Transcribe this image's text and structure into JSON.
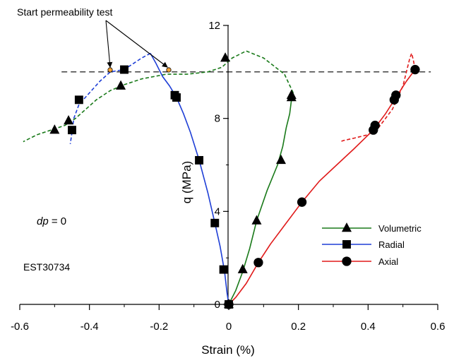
{
  "chart_data": {
    "type": "scatter",
    "xlabel": "Strain (%)",
    "ylabel": "q (MPa)",
    "xlim": [
      -0.6,
      0.6
    ],
    "ylim": [
      0,
      12
    ],
    "x_ticks": [
      -0.6,
      -0.4,
      -0.2,
      0,
      0.2,
      0.4,
      0.6
    ],
    "y_ticks": [
      0,
      4,
      8,
      12
    ],
    "x_tick_labels": [
      "-0.6",
      "-0.4",
      "-0.2",
      "0",
      "0.2",
      "0.4",
      "0.6"
    ],
    "y_tick_labels": [
      "0",
      "4",
      "8",
      "12"
    ],
    "reference_line_y": 10,
    "legend_position": "bottom-right",
    "annotations": {
      "callout": "Start permeability test",
      "condition_var": "dp",
      "condition_rest": " = 0",
      "sample_id": "EST30734"
    },
    "series": [
      {
        "name": "Volumetric",
        "color": "#1a7a1a",
        "marker": "triangle",
        "markers": [
          [
            0,
            0
          ],
          [
            0.04,
            1.5
          ],
          [
            0.08,
            3.6
          ],
          [
            0.15,
            6.2
          ],
          [
            0.18,
            9.0
          ],
          [
            0.18,
            8.9
          ],
          [
            -0.01,
            10.6
          ],
          [
            -0.31,
            9.4
          ],
          [
            -0.46,
            7.9
          ],
          [
            -0.5,
            7.5
          ]
        ],
        "curve_loading": [
          [
            0,
            0
          ],
          [
            0.02,
            0.6
          ],
          [
            0.04,
            1.4
          ],
          [
            0.06,
            2.4
          ],
          [
            0.08,
            3.6
          ],
          [
            0.11,
            4.9
          ],
          [
            0.14,
            6.0
          ],
          [
            0.155,
            6.8
          ],
          [
            0.165,
            7.6
          ],
          [
            0.175,
            8.2
          ],
          [
            0.18,
            8.8
          ],
          [
            0.185,
            9.1
          ]
        ],
        "curve_unloading": [
          [
            0.185,
            9.1
          ],
          [
            0.16,
            9.9
          ],
          [
            0.1,
            10.6
          ],
          [
            0.05,
            10.9
          ],
          [
            0.01,
            10.6
          ],
          [
            -0.02,
            10.2
          ],
          [
            -0.06,
            10.0
          ],
          [
            -0.12,
            9.9
          ],
          [
            -0.18,
            9.9
          ],
          [
            -0.25,
            9.7
          ],
          [
            -0.3,
            9.45
          ],
          [
            -0.34,
            9.2
          ],
          [
            -0.38,
            8.8
          ],
          [
            -0.41,
            8.4
          ],
          [
            -0.44,
            8.0
          ],
          [
            -0.47,
            7.7
          ],
          [
            -0.51,
            7.5
          ],
          [
            -0.55,
            7.3
          ],
          [
            -0.59,
            7.0
          ]
        ]
      },
      {
        "name": "Radial",
        "color": "#1f3fd6",
        "marker": "square",
        "markers": [
          [
            0,
            0
          ],
          [
            -0.015,
            1.5
          ],
          [
            -0.04,
            3.5
          ],
          [
            -0.085,
            6.2
          ],
          [
            -0.15,
            8.9
          ],
          [
            -0.155,
            9.0
          ],
          [
            -0.3,
            10.1
          ],
          [
            -0.43,
            8.8
          ],
          [
            -0.45,
            7.5
          ]
        ],
        "curve_loading": [
          [
            0,
            0
          ],
          [
            -0.005,
            0.5
          ],
          [
            -0.012,
            1.4
          ],
          [
            -0.025,
            2.5
          ],
          [
            -0.04,
            3.5
          ],
          [
            -0.06,
            4.8
          ],
          [
            -0.085,
            6.2
          ],
          [
            -0.11,
            7.4
          ],
          [
            -0.13,
            8.2
          ],
          [
            -0.15,
            8.9
          ],
          [
            -0.17,
            9.4
          ],
          [
            -0.19,
            9.8
          ],
          [
            -0.21,
            10.4
          ],
          [
            -0.225,
            10.8
          ]
        ],
        "curve_unloading": [
          [
            -0.225,
            10.8
          ],
          [
            -0.25,
            10.6
          ],
          [
            -0.3,
            10.1
          ],
          [
            -0.34,
            10.0
          ],
          [
            -0.37,
            9.6
          ],
          [
            -0.4,
            9.1
          ],
          [
            -0.43,
            8.6
          ],
          [
            -0.445,
            8.0
          ],
          [
            -0.45,
            7.4
          ],
          [
            -0.455,
            6.9
          ]
        ]
      },
      {
        "name": "Axial",
        "color": "#e01a1a",
        "marker": "circle",
        "markers": [
          [
            0,
            0
          ],
          [
            0.085,
            1.8
          ],
          [
            0.21,
            4.4
          ],
          [
            0.415,
            7.5
          ],
          [
            0.42,
            7.7
          ],
          [
            0.475,
            8.8
          ],
          [
            0.48,
            9.0
          ],
          [
            0.535,
            10.1
          ]
        ],
        "curve_loading": [
          [
            0,
            0
          ],
          [
            0.02,
            0.3
          ],
          [
            0.05,
            0.9
          ],
          [
            0.085,
            1.8
          ],
          [
            0.12,
            2.6
          ],
          [
            0.16,
            3.4
          ],
          [
            0.21,
            4.4
          ],
          [
            0.26,
            5.3
          ],
          [
            0.31,
            6.0
          ],
          [
            0.36,
            6.7
          ],
          [
            0.415,
            7.5
          ],
          [
            0.45,
            8.2
          ],
          [
            0.48,
            8.9
          ],
          [
            0.51,
            9.6
          ],
          [
            0.535,
            10.1
          ]
        ],
        "curve_unloading": [
          [
            0.535,
            10.1
          ],
          [
            0.53,
            10.5
          ],
          [
            0.525,
            10.8
          ],
          [
            0.52,
            10.6
          ],
          [
            0.5,
            9.4
          ],
          [
            0.47,
            8.4
          ],
          [
            0.43,
            7.6
          ],
          [
            0.4,
            7.3
          ],
          [
            0.36,
            7.15
          ],
          [
            0.33,
            7.05
          ],
          [
            0.32,
            7.0
          ]
        ]
      }
    ]
  }
}
